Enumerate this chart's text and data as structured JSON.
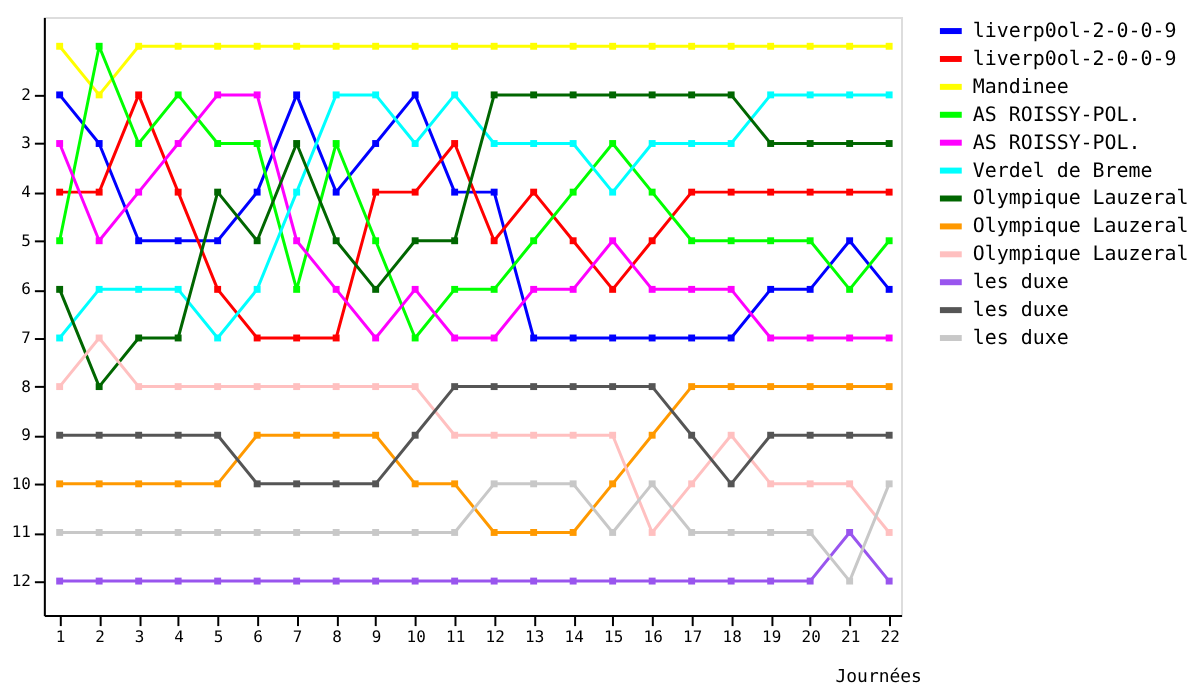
{
  "chart_data": {
    "type": "line",
    "xlabel": "Journées",
    "x": [
      1,
      2,
      3,
      4,
      5,
      6,
      7,
      8,
      9,
      10,
      11,
      12,
      13,
      14,
      15,
      16,
      17,
      18,
      19,
      20,
      21,
      22
    ],
    "xlim": [
      0.6,
      22.3
    ],
    "xticks": [
      1,
      2,
      3,
      4,
      5,
      6,
      7,
      8,
      9,
      10,
      11,
      12,
      13,
      14,
      15,
      16,
      17,
      18,
      19,
      20,
      21,
      22
    ],
    "ylim": [
      12.7,
      0.4
    ],
    "yticks": [
      2,
      3,
      4,
      5,
      6,
      7,
      8,
      9,
      10,
      11,
      12
    ],
    "grid": false,
    "legend": "right",
    "marker": "square",
    "line_style": "solid",
    "series": [
      {
        "name": "liverp0ol-2-0-0-9",
        "color": "#0000ff",
        "values": [
          2,
          3,
          5,
          5,
          5,
          4,
          2,
          4,
          3,
          2,
          4,
          4,
          7,
          7,
          7,
          7,
          7,
          7,
          6,
          6,
          5,
          6
        ]
      },
      {
        "name": "liverp0ol-2-0-0-9",
        "color": "#ff0000",
        "values": [
          4,
          4,
          2,
          4,
          6,
          7,
          7,
          7,
          4,
          4,
          3,
          5,
          4,
          5,
          6,
          5,
          4,
          4,
          4,
          4,
          4,
          4
        ]
      },
      {
        "name": "Mandinee",
        "color": "#ffff00",
        "values": [
          1,
          2,
          1,
          1,
          1,
          1,
          1,
          1,
          1,
          1,
          1,
          1,
          1,
          1,
          1,
          1,
          1,
          1,
          1,
          1,
          1,
          1
        ]
      },
      {
        "name": "AS ROISSY-POL.",
        "color": "#00ff00",
        "values": [
          5,
          1,
          3,
          2,
          3,
          3,
          6,
          3,
          5,
          7,
          6,
          6,
          5,
          4,
          3,
          4,
          5,
          5,
          5,
          5,
          6,
          5
        ]
      },
      {
        "name": "AS ROISSY-POL.",
        "color": "#ff00ff",
        "values": [
          3,
          5,
          4,
          3,
          2,
          2,
          5,
          6,
          7,
          6,
          7,
          7,
          6,
          6,
          5,
          6,
          6,
          6,
          7,
          7,
          7,
          7
        ]
      },
      {
        "name": "Verdel de Breme",
        "color": "#00ffff",
        "values": [
          7,
          6,
          6,
          6,
          7,
          6,
          4,
          2,
          2,
          3,
          2,
          3,
          3,
          3,
          4,
          3,
          3,
          3,
          2,
          2,
          2,
          2
        ]
      },
      {
        "name": "Olympique Lauzeral",
        "color": "#006600",
        "values": [
          6,
          8,
          7,
          7,
          4,
          5,
          3,
          5,
          6,
          5,
          5,
          2,
          2,
          2,
          2,
          2,
          2,
          2,
          3,
          3,
          3,
          3
        ]
      },
      {
        "name": "Olympique Lauzeral",
        "color": "#ff9900",
        "values": [
          10,
          10,
          10,
          10,
          10,
          9,
          9,
          9,
          9,
          10,
          10,
          11,
          11,
          11,
          10,
          9,
          8,
          8,
          8,
          8,
          8,
          8
        ]
      },
      {
        "name": "Olympique Lauzeral",
        "color": "#ffc0c0",
        "values": [
          8,
          7,
          8,
          8,
          8,
          8,
          8,
          8,
          8,
          8,
          9,
          9,
          9,
          9,
          9,
          11,
          10,
          9,
          10,
          10,
          10,
          11
        ]
      },
      {
        "name": "les duxe",
        "color": "#9955ee",
        "values": [
          12,
          12,
          12,
          12,
          12,
          12,
          12,
          12,
          12,
          12,
          12,
          12,
          12,
          12,
          12,
          12,
          12,
          12,
          12,
          12,
          11,
          12
        ]
      },
      {
        "name": "les duxe",
        "color": "#555555",
        "values": [
          9,
          9,
          9,
          9,
          9,
          10,
          10,
          10,
          10,
          9,
          8,
          8,
          8,
          8,
          8,
          8,
          9,
          10,
          9,
          9,
          9,
          9
        ]
      },
      {
        "name": "les duxe",
        "color": "#c8c8c8",
        "values": [
          11,
          11,
          11,
          11,
          11,
          11,
          11,
          11,
          11,
          11,
          11,
          10,
          10,
          10,
          11,
          10,
          11,
          11,
          11,
          11,
          12,
          10
        ]
      }
    ]
  }
}
